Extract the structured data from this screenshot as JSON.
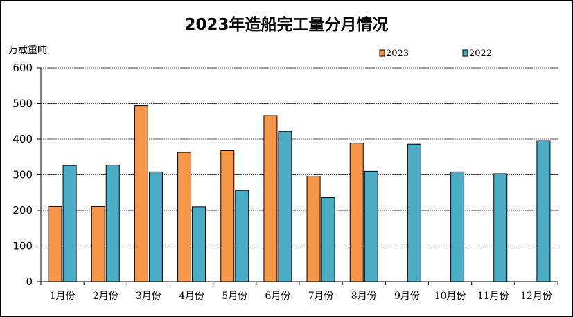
{
  "chart_data": {
    "type": "bar",
    "title": "2023年造船完工量分月情况",
    "ylabel": "万载重吨",
    "xlabel": "",
    "ylim": [
      0,
      600
    ],
    "yticks": [
      0,
      100,
      200,
      300,
      400,
      500,
      600
    ],
    "grid": true,
    "legend_position": "top-right",
    "categories": [
      "1月份",
      "2月份",
      "3月份",
      "4月份",
      "5月份",
      "6月份",
      "7月份",
      "8月份",
      "9月份",
      "10月份",
      "11月份",
      "12月份"
    ],
    "series": [
      {
        "name": "2023",
        "color": "#F79646",
        "values": [
          211,
          211,
          494,
          363,
          368,
          466,
          296,
          389,
          null,
          null,
          null,
          null
        ]
      },
      {
        "name": "2022",
        "color": "#4BACC6",
        "values": [
          326,
          327,
          308,
          210,
          256,
          422,
          236,
          310,
          386,
          308,
          303,
          396
        ]
      }
    ]
  }
}
